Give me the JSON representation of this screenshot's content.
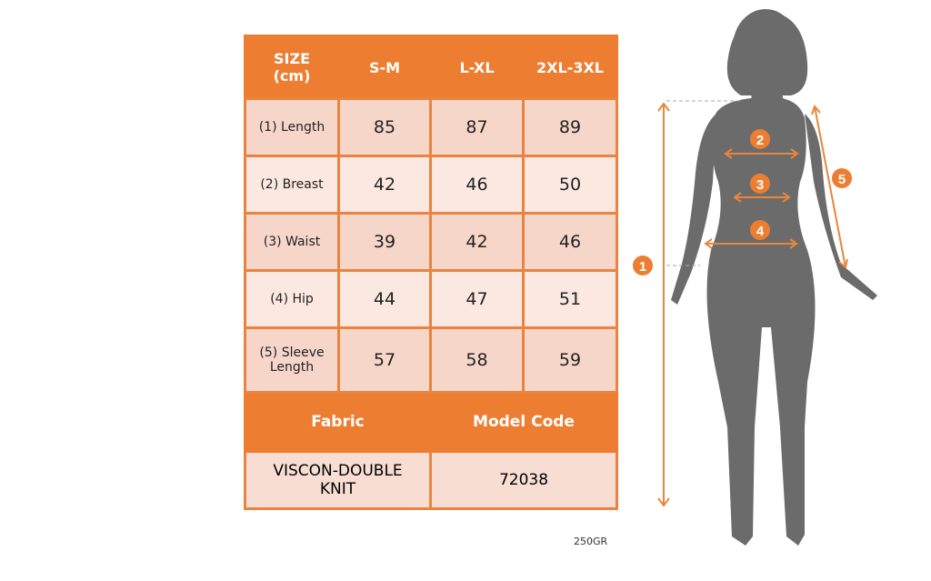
{
  "table": {
    "header": [
      "SIZE\n(cm)",
      "S-M",
      "L-XL",
      "2XL-3XL"
    ],
    "header_size_line1": "SIZE",
    "header_size_line2": "(cm)",
    "rows": [
      {
        "label": "(1) Length",
        "values": [
          "85",
          "87",
          "89"
        ]
      },
      {
        "label": "(2) Breast",
        "values": [
          "42",
          "46",
          "50"
        ]
      },
      {
        "label": "(3) Waist",
        "values": [
          "39",
          "42",
          "46"
        ]
      },
      {
        "label": "(4) Hip",
        "values": [
          "44",
          "47",
          "51"
        ]
      },
      {
        "label_line1": "(5) Sleeve",
        "label_line2": "Length",
        "values": [
          "57",
          "58",
          "59"
        ]
      }
    ],
    "fabric_header": "Fabric",
    "model_code_header": "Model Code",
    "fabric_line1": "VISCON-DOUBLE",
    "fabric_line2": "KNIT",
    "model_code": "72038"
  },
  "note": "250GR",
  "figure": {
    "markers": [
      "1",
      "2",
      "3",
      "4",
      "5"
    ],
    "colors": {
      "accent": "#ED7D31",
      "silhouette": "#6B6B6B",
      "row_dark": "#F7D6CA",
      "row_light": "#FBE8E1"
    }
  }
}
